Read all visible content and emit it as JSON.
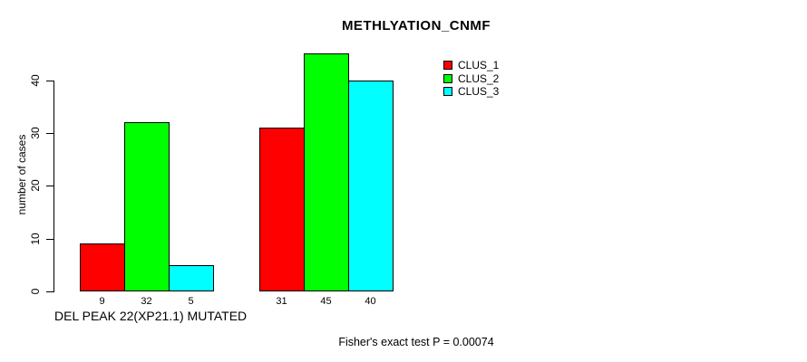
{
  "title": "METHLYATION_CNMF",
  "ylabel": "number of cases",
  "xlabel": "DEL PEAK 22(XP21.1) MUTATED",
  "footer": "Fisher's exact test P = 0.00074",
  "legend": {
    "items": [
      {
        "label": "CLUS_1",
        "color": "#ff0000"
      },
      {
        "label": "CLUS_2",
        "color": "#00ff00"
      },
      {
        "label": "CLUS_3",
        "color": "#00ffff"
      }
    ]
  },
  "chart_data": {
    "type": "bar",
    "title": "METHLYATION_CNMF",
    "xlabel": "DEL PEAK 22(XP21.1) MUTATED",
    "ylabel": "number of cases",
    "annotation": "Fisher's exact test P = 0.00074",
    "categories": [
      "DEL PEAK 22(XP21.1) MUTATED",
      ""
    ],
    "series": [
      {
        "name": "CLUS_1",
        "color": "#ff0000",
        "values": [
          9,
          31
        ]
      },
      {
        "name": "CLUS_2",
        "color": "#00ff00",
        "values": [
          32,
          45
        ]
      },
      {
        "name": "CLUS_3",
        "color": "#00ffff",
        "values": [
          5,
          40
        ]
      }
    ],
    "bar_value_labels": [
      [
        9,
        32,
        5
      ],
      [
        31,
        45,
        40
      ]
    ],
    "yticks": [
      0,
      10,
      20,
      30,
      40
    ],
    "ylim": [
      0,
      45
    ],
    "grid": false,
    "legend_position": "top-right"
  }
}
